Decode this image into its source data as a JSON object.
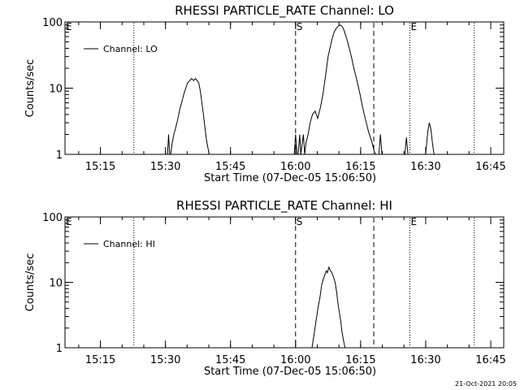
{
  "footer": {
    "timestamp": "21-Oct-2021 20:05"
  },
  "chart_data": [
    {
      "type": "line",
      "title": "RHESSI PARTICLE_RATE Channel: LO",
      "xlabel": "Start Time (07-Dec-05 15:06:50)",
      "ylabel": "Counts/sec",
      "yscale": "log",
      "xlim": [
        15.1139,
        16.8
      ],
      "ylim": [
        1,
        100
      ],
      "x_ticks": [
        {
          "value": 15.25,
          "label": "15:15"
        },
        {
          "value": 15.5,
          "label": "15:30"
        },
        {
          "value": 15.75,
          "label": "15:45"
        },
        {
          "value": 16.0,
          "label": "16:00"
        },
        {
          "value": 16.25,
          "label": "16:15"
        },
        {
          "value": 16.5,
          "label": "16:30"
        },
        {
          "value": 16.75,
          "label": "16:45"
        }
      ],
      "y_ticks": [
        {
          "value": 1,
          "label": "1"
        },
        {
          "value": 10,
          "label": "10"
        },
        {
          "value": 100,
          "label": "100"
        }
      ],
      "legend": {
        "position": "top-left",
        "entries": [
          "Channel: LO"
        ]
      },
      "markers": [
        {
          "x": 15.3786,
          "style": "dotted",
          "label": ""
        },
        {
          "x": 16.0,
          "style": "dashed",
          "label": "S"
        },
        {
          "x": 16.3005,
          "style": "dashed",
          "label": ""
        },
        {
          "x": 16.4393,
          "style": "dotted",
          "label": "E"
        },
        {
          "x": 16.6866,
          "style": "dotted",
          "label": ""
        }
      ],
      "left_label": "E",
      "series": [
        {
          "name": "Channel: LO",
          "x": [
            15.508,
            15.512,
            15.516,
            15.52,
            15.526,
            15.532,
            15.54,
            15.548,
            15.556,
            15.562,
            15.57,
            15.578,
            15.585,
            15.593,
            15.6,
            15.608,
            15.615,
            15.622,
            15.628,
            15.634,
            15.64,
            15.646,
            15.652,
            15.658,
            15.664,
            15.668
          ],
          "y": [
            1,
            2,
            1,
            1,
            1.5,
            2,
            2.6,
            3.5,
            5,
            6,
            8,
            10,
            12,
            13,
            14,
            13,
            14,
            13,
            12,
            9,
            6,
            4,
            2.5,
            1.6,
            1.2,
            1
          ]
        },
        {
          "name": "Channel: LO",
          "x": [
            15.995,
            16.0,
            16.006,
            16.01,
            16.016,
            16.02,
            16.03,
            16.035,
            16.04,
            16.048,
            16.056,
            16.065,
            16.075,
            16.085,
            16.095,
            16.105,
            16.115,
            16.125,
            16.132,
            16.14,
            16.148,
            16.156,
            16.164,
            16.172,
            16.18,
            16.186,
            16.194,
            16.2,
            16.208,
            16.216,
            16.224,
            16.232,
            16.24,
            16.248,
            16.256,
            16.264,
            16.272,
            16.28,
            16.288,
            16.296,
            16.302,
            16.308
          ],
          "y": [
            1,
            2,
            1,
            1,
            2,
            1,
            2,
            1,
            1.5,
            2,
            3,
            4,
            4.5,
            3.5,
            5,
            8,
            15,
            30,
            40,
            55,
            70,
            80,
            86,
            90,
            85,
            75,
            60,
            50,
            38,
            28,
            20,
            15,
            11,
            8,
            5.5,
            4,
            3,
            2.2,
            1.8,
            1.4,
            1.1,
            1
          ]
        },
        {
          "name": "Channel: LO",
          "x": [
            16.32,
            16.326,
            16.332,
            16.42,
            16.426,
            16.432
          ],
          "y": [
            1,
            2,
            1,
            1,
            1.8,
            1
          ]
        },
        {
          "name": "Channel: LO",
          "x": [
            16.5,
            16.508,
            16.514,
            16.52,
            16.526,
            16.532
          ],
          "y": [
            1,
            2.2,
            3,
            2.4,
            1.5,
            1
          ]
        }
      ]
    },
    {
      "type": "line",
      "title": "RHESSI PARTICLE_RATE Channel: HI",
      "xlabel": "Start Time (07-Dec-05 15:06:50)",
      "ylabel": "Counts/sec",
      "yscale": "log",
      "xlim": [
        15.1139,
        16.8
      ],
      "ylim": [
        1,
        100
      ],
      "x_ticks": [
        {
          "value": 15.25,
          "label": "15:15"
        },
        {
          "value": 15.5,
          "label": "15:30"
        },
        {
          "value": 15.75,
          "label": "15:45"
        },
        {
          "value": 16.0,
          "label": "16:00"
        },
        {
          "value": 16.25,
          "label": "16:15"
        },
        {
          "value": 16.5,
          "label": "16:30"
        },
        {
          "value": 16.75,
          "label": "16:45"
        }
      ],
      "y_ticks": [
        {
          "value": 1,
          "label": "1"
        },
        {
          "value": 10,
          "label": "10"
        },
        {
          "value": 100,
          "label": "100"
        }
      ],
      "legend": {
        "position": "top-left",
        "entries": [
          "Channel: HI"
        ]
      },
      "markers": [
        {
          "x": 15.3786,
          "style": "dotted",
          "label": ""
        },
        {
          "x": 16.0,
          "style": "dashed",
          "label": "S"
        },
        {
          "x": 16.3005,
          "style": "dashed",
          "label": ""
        },
        {
          "x": 16.4393,
          "style": "dotted",
          "label": "E"
        },
        {
          "x": 16.6866,
          "style": "dotted",
          "label": ""
        }
      ],
      "left_label": "E",
      "series": [
        {
          "name": "Channel: HI",
          "x": [
            16.063,
            16.07,
            16.078,
            16.086,
            16.094,
            16.1,
            16.106,
            16.112,
            16.118,
            16.122,
            16.128,
            16.134,
            16.14,
            16.146,
            16.152,
            16.158,
            16.162,
            16.168,
            16.174,
            16.178,
            16.184,
            16.19
          ],
          "y": [
            1,
            1.5,
            2.5,
            4,
            6,
            9,
            11,
            13,
            15,
            14,
            17,
            15,
            14,
            12,
            10,
            7,
            5,
            3.5,
            2.5,
            1.8,
            1.3,
            1
          ]
        }
      ]
    }
  ]
}
